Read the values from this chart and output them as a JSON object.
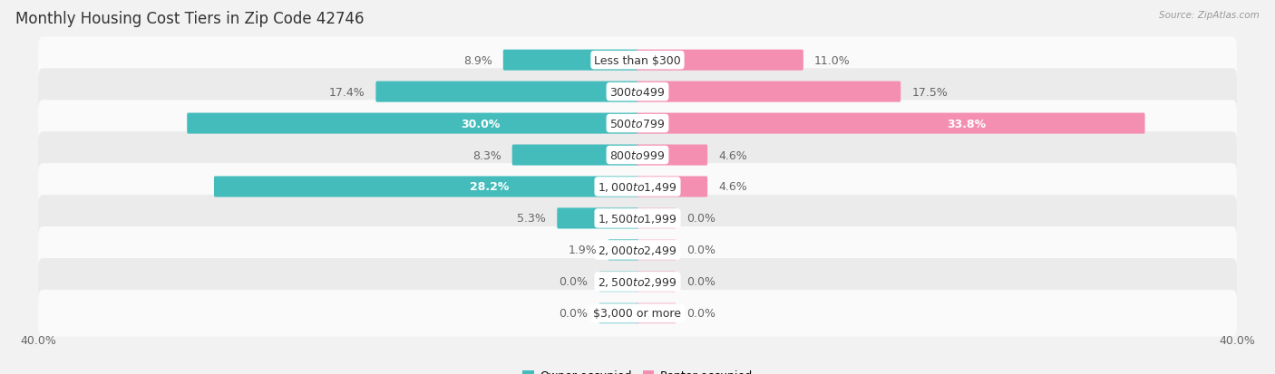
{
  "title": "Monthly Housing Cost Tiers in Zip Code 42746",
  "source": "Source: ZipAtlas.com",
  "categories": [
    "Less than $300",
    "$300 to $499",
    "$500 to $799",
    "$800 to $999",
    "$1,000 to $1,499",
    "$1,500 to $1,999",
    "$2,000 to $2,499",
    "$2,500 to $2,999",
    "$3,000 or more"
  ],
  "owner_values": [
    8.9,
    17.4,
    30.0,
    8.3,
    28.2,
    5.3,
    1.9,
    0.0,
    0.0
  ],
  "renter_values": [
    11.0,
    17.5,
    33.8,
    4.6,
    4.6,
    0.0,
    0.0,
    0.0,
    0.0
  ],
  "owner_color": "#45BCBC",
  "renter_color": "#F48FB1",
  "bg_color": "#F2F2F2",
  "row_bg_light": "#FAFAFA",
  "row_bg_dark": "#EBEBEB",
  "axis_max": 40.0,
  "title_fontsize": 12,
  "label_fontsize": 9,
  "tick_fontsize": 9,
  "legend_fontsize": 9,
  "stub_value": 2.5,
  "owner_inside_threshold": 18,
  "renter_inside_threshold": 25
}
